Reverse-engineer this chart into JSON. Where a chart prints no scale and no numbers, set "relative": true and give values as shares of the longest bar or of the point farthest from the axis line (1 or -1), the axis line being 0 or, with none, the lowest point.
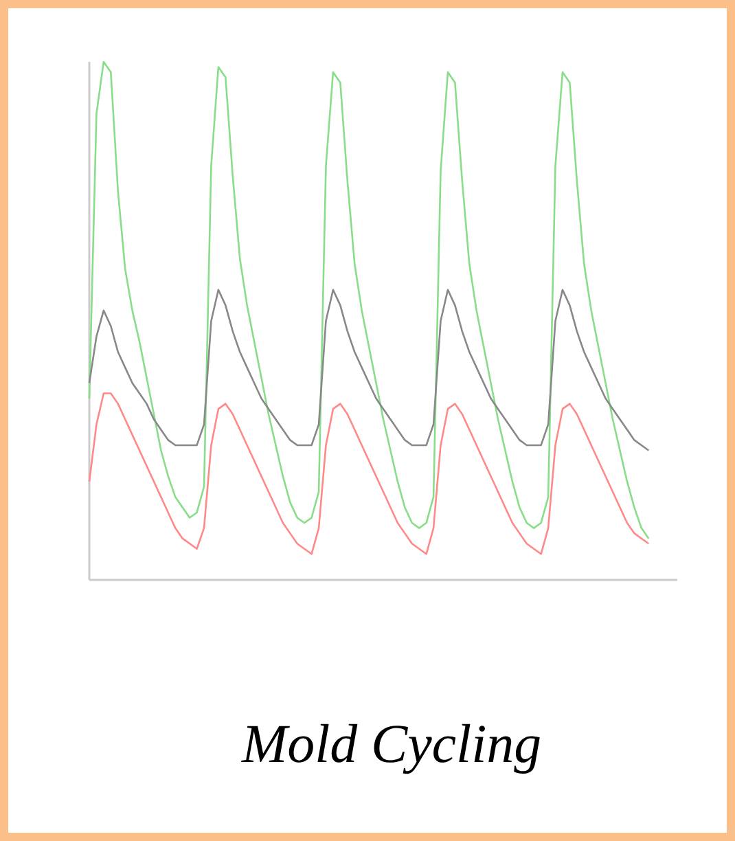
{
  "chart_data": {
    "type": "line",
    "title": "Mold Cycling",
    "relative": true,
    "categories": [
      null,
      null,
      null,
      null,
      null,
      null,
      null,
      null,
      null,
      null,
      null,
      null,
      null,
      null,
      null,
      null,
      null,
      null,
      null,
      null,
      null,
      null,
      null,
      null,
      null,
      null,
      null,
      null,
      null,
      null,
      null,
      null,
      null,
      null,
      null,
      null,
      null,
      null,
      null,
      null,
      null,
      null,
      null,
      null,
      null,
      null,
      null,
      null,
      null,
      null,
      null,
      null,
      null,
      null,
      null,
      null,
      null,
      null,
      null,
      null,
      null,
      null,
      null,
      null,
      null,
      null,
      null,
      null,
      null,
      null,
      null,
      null,
      null,
      null,
      null,
      null,
      null,
      null,
      null,
      null,
      null,
      null,
      null
    ],
    "series": [
      {
        "color": "#88dd88",
        "values": [
          0.35,
          0.9,
          1.0,
          0.98,
          0.75,
          0.6,
          0.52,
          0.46,
          0.39,
          0.32,
          0.25,
          0.2,
          0.16,
          0.14,
          0.12,
          0.13,
          0.18,
          0.8,
          0.99,
          0.97,
          0.78,
          0.62,
          0.53,
          0.46,
          0.39,
          0.32,
          0.26,
          0.2,
          0.15,
          0.12,
          0.11,
          0.12,
          0.17,
          0.8,
          0.98,
          0.96,
          0.77,
          0.61,
          0.52,
          0.45,
          0.38,
          0.31,
          0.25,
          0.19,
          0.14,
          0.11,
          0.1,
          0.11,
          0.16,
          0.79,
          0.98,
          0.96,
          0.77,
          0.61,
          0.52,
          0.45,
          0.38,
          0.31,
          0.25,
          0.19,
          0.14,
          0.11,
          0.1,
          0.11,
          0.16,
          0.8,
          0.98,
          0.96,
          0.77,
          0.61,
          0.52,
          0.45,
          0.38,
          0.31,
          0.25,
          0.19,
          0.14,
          0.1,
          0.08,
          null,
          null,
          null,
          null
        ]
      },
      {
        "color": "#ff8888",
        "values": [
          0.19,
          0.3,
          0.36,
          0.36,
          0.34,
          0.31,
          0.28,
          0.25,
          0.22,
          0.19,
          0.16,
          0.13,
          0.1,
          0.08,
          0.07,
          0.06,
          0.1,
          0.26,
          0.33,
          0.34,
          0.32,
          0.29,
          0.26,
          0.23,
          0.2,
          0.17,
          0.14,
          0.11,
          0.09,
          0.07,
          0.06,
          0.05,
          0.1,
          0.26,
          0.33,
          0.34,
          0.32,
          0.29,
          0.26,
          0.23,
          0.2,
          0.17,
          0.14,
          0.11,
          0.09,
          0.07,
          0.06,
          0.05,
          0.1,
          0.26,
          0.33,
          0.34,
          0.32,
          0.29,
          0.26,
          0.23,
          0.2,
          0.17,
          0.14,
          0.11,
          0.09,
          0.07,
          0.06,
          0.05,
          0.1,
          0.26,
          0.33,
          0.34,
          0.32,
          0.29,
          0.26,
          0.23,
          0.2,
          0.17,
          0.14,
          0.11,
          0.09,
          0.08,
          0.07,
          null,
          null,
          null,
          null
        ]
      },
      {
        "color": "#888888",
        "values": [
          0.38,
          0.47,
          0.52,
          0.49,
          0.44,
          0.41,
          0.38,
          0.36,
          0.34,
          0.31,
          0.29,
          0.27,
          0.26,
          0.26,
          0.26,
          0.26,
          0.3,
          0.5,
          0.56,
          0.53,
          0.48,
          0.44,
          0.41,
          0.38,
          0.35,
          0.33,
          0.31,
          0.29,
          0.27,
          0.26,
          0.26,
          0.26,
          0.3,
          0.5,
          0.56,
          0.53,
          0.48,
          0.44,
          0.41,
          0.38,
          0.35,
          0.33,
          0.31,
          0.29,
          0.27,
          0.26,
          0.26,
          0.26,
          0.3,
          0.5,
          0.56,
          0.53,
          0.48,
          0.44,
          0.41,
          0.38,
          0.35,
          0.33,
          0.31,
          0.29,
          0.27,
          0.26,
          0.26,
          0.26,
          0.3,
          0.5,
          0.56,
          0.53,
          0.48,
          0.44,
          0.41,
          0.38,
          0.35,
          0.33,
          0.31,
          0.29,
          0.27,
          0.26,
          0.25,
          null,
          null,
          null,
          null
        ]
      }
    ]
  }
}
